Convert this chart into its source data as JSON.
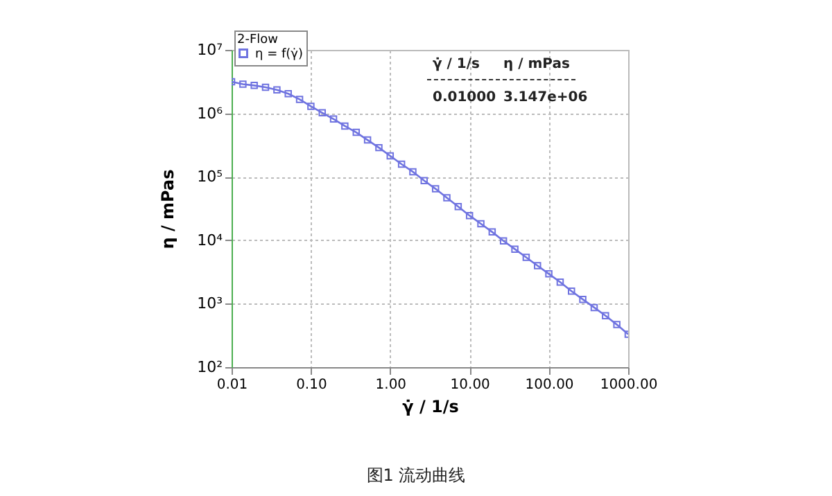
{
  "chart_data": {
    "type": "line",
    "xlabel": "γ̇ / 1/s",
    "ylabel": "η / mPas",
    "legend_title": "2-Flow",
    "annotations": [
      "γ̇ / 1/s",
      "η / mPas",
      "0.01000",
      "3.147e+06",
      "图1 流动曲线"
    ],
    "x": [
      0.01,
      0.0139,
      0.0193,
      0.0268,
      0.0373,
      0.0518,
      0.072,
      0.1,
      0.139,
      0.193,
      0.268,
      0.373,
      0.518,
      0.72,
      1,
      1.39,
      1.93,
      2.68,
      3.73,
      5.18,
      7.2,
      10,
      13.9,
      19.3,
      26.8,
      37.3,
      51.8,
      72,
      100,
      139,
      193,
      268,
      373,
      518,
      720,
      1000
    ],
    "series": [
      {
        "name": "η = f(γ̇)",
        "color": "#6f73e0",
        "values": [
          3147000,
          2880000,
          2750000,
          2570000,
          2340000,
          2040000,
          1660000,
          1290000,
          1020000,
          813000,
          631000,
          501000,
          380000,
          288000,
          214000,
          158000,
          120000,
          87100,
          64600,
          46800,
          33900,
          24500,
          18200,
          13500,
          9770,
          7240,
          5370,
          3980,
          2950,
          2190,
          1580,
          1170,
          871,
          646,
          468,
          331
        ]
      }
    ],
    "xlim": [
      0.01,
      1000
    ],
    "ylim": [
      100,
      10000000
    ],
    "xticks": [
      0.01,
      {
        "value": 0.1,
        "label": "0.10"
      },
      {
        "value": 1,
        "label": "1.00"
      },
      {
        "value": 10,
        "label": "10.00"
      },
      {
        "value": 100,
        "label": "100.00"
      },
      {
        "value": 1000,
        "label": "1000.00"
      }
    ],
    "yticks": [
      {
        "value": 100,
        "label": "10²"
      },
      {
        "value": 1000,
        "label": "10³"
      },
      {
        "value": 10000,
        "label": "10⁴"
      },
      {
        "value": 100000,
        "label": "10⁵"
      },
      {
        "value": 1000000,
        "label": "10⁶"
      },
      {
        "value": 10000000,
        "label": "10⁷"
      }
    ],
    "log": "xy",
    "grid": true,
    "legend": "top left",
    "marker": "square",
    "line_style": "solid"
  }
}
